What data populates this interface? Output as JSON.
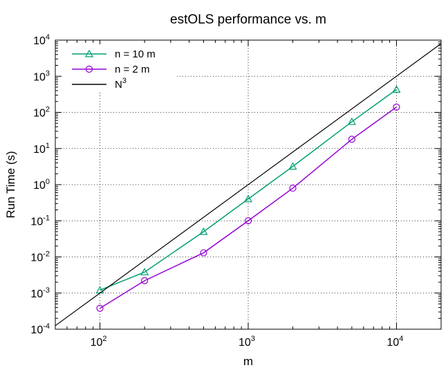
{
  "chart_data": {
    "type": "line",
    "title": "estOLS performance vs. m",
    "xlabel": "m",
    "ylabel": "Run Time (s)",
    "xscale": "log",
    "yscale": "log",
    "xlim": [
      50,
      20000
    ],
    "ylim": [
      0.0001,
      10000
    ],
    "grid": true,
    "legend_position": "top-left",
    "xticks": [
      {
        "value": 100,
        "base": "10",
        "exp": "2"
      },
      {
        "value": 1000,
        "base": "10",
        "exp": "3"
      },
      {
        "value": 10000,
        "base": "10",
        "exp": "4"
      }
    ],
    "yticks": [
      {
        "value": 0.0001,
        "base": "10",
        "exp": "-4"
      },
      {
        "value": 0.001,
        "base": "10",
        "exp": "-3"
      },
      {
        "value": 0.01,
        "base": "10",
        "exp": "-2"
      },
      {
        "value": 0.1,
        "base": "10",
        "exp": "-1"
      },
      {
        "value": 1,
        "base": "10",
        "exp": "0"
      },
      {
        "value": 10,
        "base": "10",
        "exp": "1"
      },
      {
        "value": 100,
        "base": "10",
        "exp": "2"
      },
      {
        "value": 1000,
        "base": "10",
        "exp": "3"
      },
      {
        "value": 10000,
        "base": "10",
        "exp": "4"
      }
    ],
    "series": [
      {
        "name": "n = 10 m",
        "color": "#009e73",
        "marker": "triangle",
        "x": [
          100,
          200,
          500,
          1000,
          2000,
          5000,
          10000
        ],
        "y": [
          0.0012,
          0.0038,
          0.05,
          0.4,
          3.2,
          55,
          430
        ]
      },
      {
        "name": "n = 2 m",
        "color": "#9400d3",
        "marker": "circle",
        "x": [
          100,
          200,
          500,
          1000,
          2000,
          5000,
          10000
        ],
        "y": [
          0.00038,
          0.0022,
          0.013,
          0.1,
          0.8,
          18,
          140
        ]
      },
      {
        "name": "N",
        "name_superscript": "3",
        "color": "#000000",
        "marker": "none",
        "x": [
          50,
          20000
        ],
        "y": [
          0.000125,
          8000
        ]
      }
    ]
  }
}
